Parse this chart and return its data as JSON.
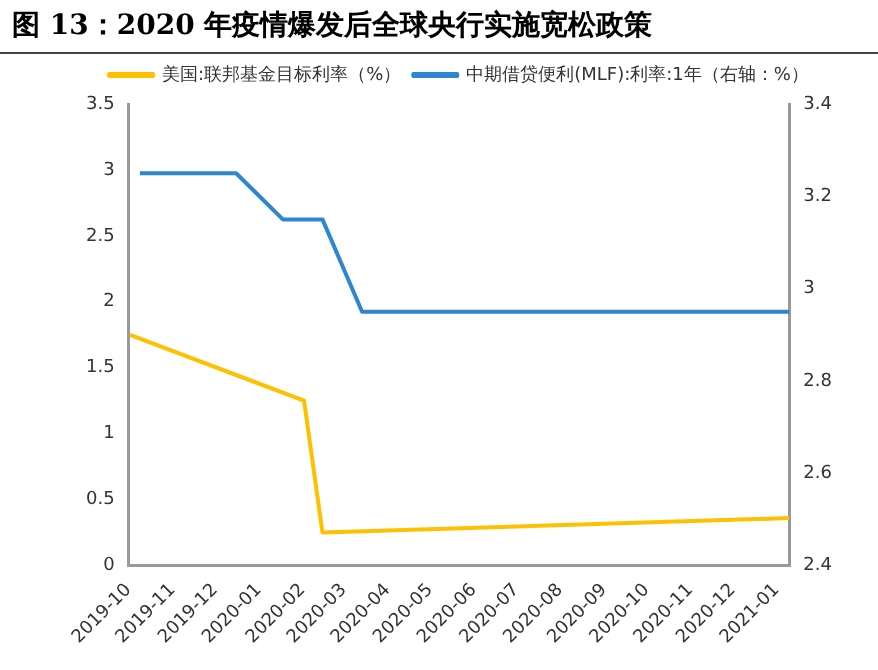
{
  "chart_data": {
    "type": "line",
    "title": "图 13：2020 年疫情爆发后全球央行实施宽松政策",
    "series": [
      {
        "name": "美国:联邦基金目标利率（%）",
        "color": "#ffc000",
        "x": [
          "2019-10-02",
          "2020-02-02",
          "2020-02-15",
          "2021-01-10"
        ],
        "values": [
          1.75,
          1.25,
          0.25,
          0.36
        ]
      },
      {
        "name": "中期借贷便利(MLF):利率:1年（右轴：%）",
        "color": "#2e86cf",
        "axis": "y2",
        "x": [
          "2019-10-09",
          "2019-12-16",
          "2020-01-18",
          "2020-02-15",
          "2020-03-14",
          "2021-01-10"
        ],
        "values": [
          3.25,
          3.25,
          3.15,
          3.15,
          2.95,
          2.95
        ]
      }
    ],
    "xlim": [
      "2019-10-01",
      "2021-01-10"
    ],
    "xticks": [
      {
        "value": "2019-10-01",
        "label": "2019-10"
      },
      {
        "value": "2019-11-01",
        "label": "2019-11"
      },
      {
        "value": "2019-12-01",
        "label": "2019-12"
      },
      {
        "value": "2020-01-01",
        "label": "2020-01"
      },
      {
        "value": "2020-02-01",
        "label": "2020-02"
      },
      {
        "value": "2020-03-01",
        "label": "2020-03"
      },
      {
        "value": "2020-04-01",
        "label": "2020-04"
      },
      {
        "value": "2020-05-01",
        "label": "2020-05"
      },
      {
        "value": "2020-06-01",
        "label": "2020-06"
      },
      {
        "value": "2020-07-01",
        "label": "2020-07"
      },
      {
        "value": "2020-08-01",
        "label": "2020-08"
      },
      {
        "value": "2020-09-01",
        "label": "2020-09"
      },
      {
        "value": "2020-10-01",
        "label": "2020-10"
      },
      {
        "value": "2020-11-01",
        "label": "2020-11"
      },
      {
        "value": "2020-12-01",
        "label": "2020-12"
      },
      {
        "value": "2021-01-01",
        "label": "2021-01"
      }
    ],
    "ylim": [
      0,
      3.5
    ],
    "yticks": [
      0,
      0.5,
      1,
      1.5,
      2,
      2.5,
      3,
      3.5
    ],
    "y2lim": [
      2.4,
      3.4
    ],
    "y2ticks": [
      2.4,
      2.6,
      2.8,
      3,
      3.2,
      3.4
    ],
    "grid": false,
    "legend": "top",
    "marker": "none",
    "line_style": "solid"
  }
}
